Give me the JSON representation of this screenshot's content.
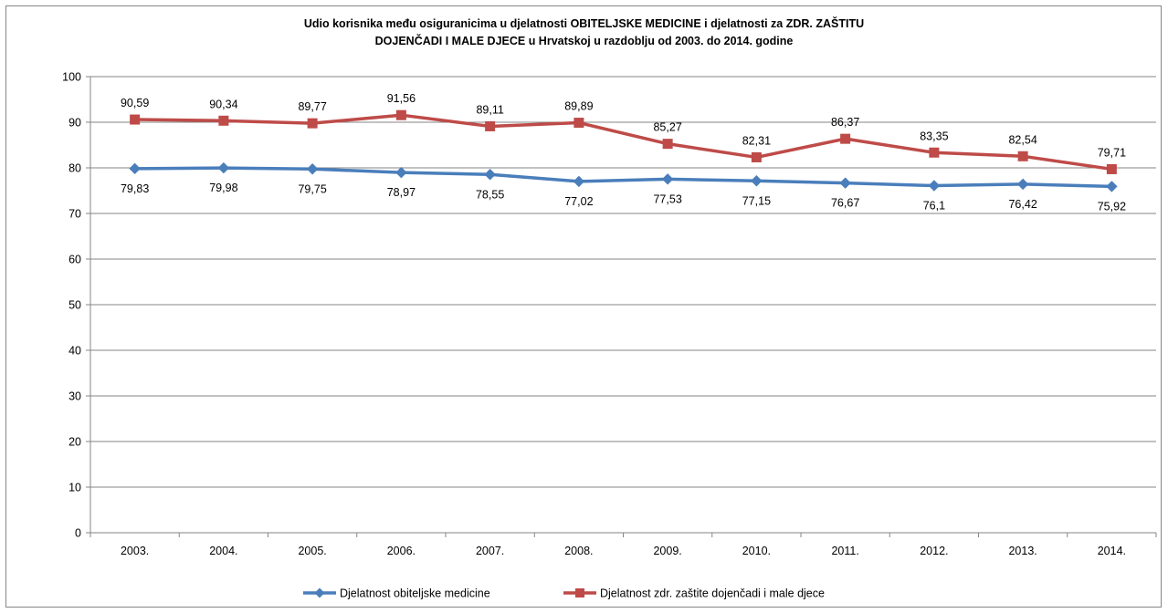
{
  "chart_data": {
    "type": "line",
    "title_lines": [
      "Udio korisnika među osiguranicima u djelatnosti  OBITELJSKE MEDICINE i djelatnosti za ZDR. ZAŠTITU",
      "DOJENČADI I MALE DJECE u Hrvatskoj u razdoblju od 2003.  do 2014. godine"
    ],
    "categories": [
      "2003.",
      "2004.",
      "2005.",
      "2006.",
      "2007.",
      "2008.",
      "2009.",
      "2010.",
      "2011.",
      "2012.",
      "2013.",
      "2014."
    ],
    "ylim": [
      0,
      100
    ],
    "yticks": [
      0,
      10,
      20,
      30,
      40,
      50,
      60,
      70,
      80,
      90,
      100
    ],
    "grid": true,
    "legend_position": "bottom",
    "series": [
      {
        "name": "Djelatnost obiteljske medicine",
        "color": "#4a7ebb",
        "marker": "diamond",
        "label_position": "below",
        "values": [
          79.83,
          79.98,
          79.75,
          78.97,
          78.55,
          77.02,
          77.53,
          77.15,
          76.67,
          76.1,
          76.42,
          75.92
        ],
        "labels": [
          "79,83",
          "79,98",
          "79,75",
          "78,97",
          "78,55",
          "77,02",
          "77,53",
          "77,15",
          "76,67",
          "76,1",
          "76,42",
          "75,92"
        ]
      },
      {
        "name": "Djelatnost zdr. zaštite dojenčadi i male djece",
        "color": "#be4b48",
        "marker": "square",
        "label_position": "above",
        "values": [
          90.59,
          90.34,
          89.77,
          91.56,
          89.11,
          89.89,
          85.27,
          82.31,
          86.37,
          83.35,
          82.54,
          79.71
        ],
        "labels": [
          "90,59",
          "90,34",
          "89,77",
          "91,56",
          "89,11",
          "89,89",
          "85,27",
          "82,31",
          "86,37",
          "83,35",
          "82,54",
          "79,71"
        ]
      }
    ]
  }
}
